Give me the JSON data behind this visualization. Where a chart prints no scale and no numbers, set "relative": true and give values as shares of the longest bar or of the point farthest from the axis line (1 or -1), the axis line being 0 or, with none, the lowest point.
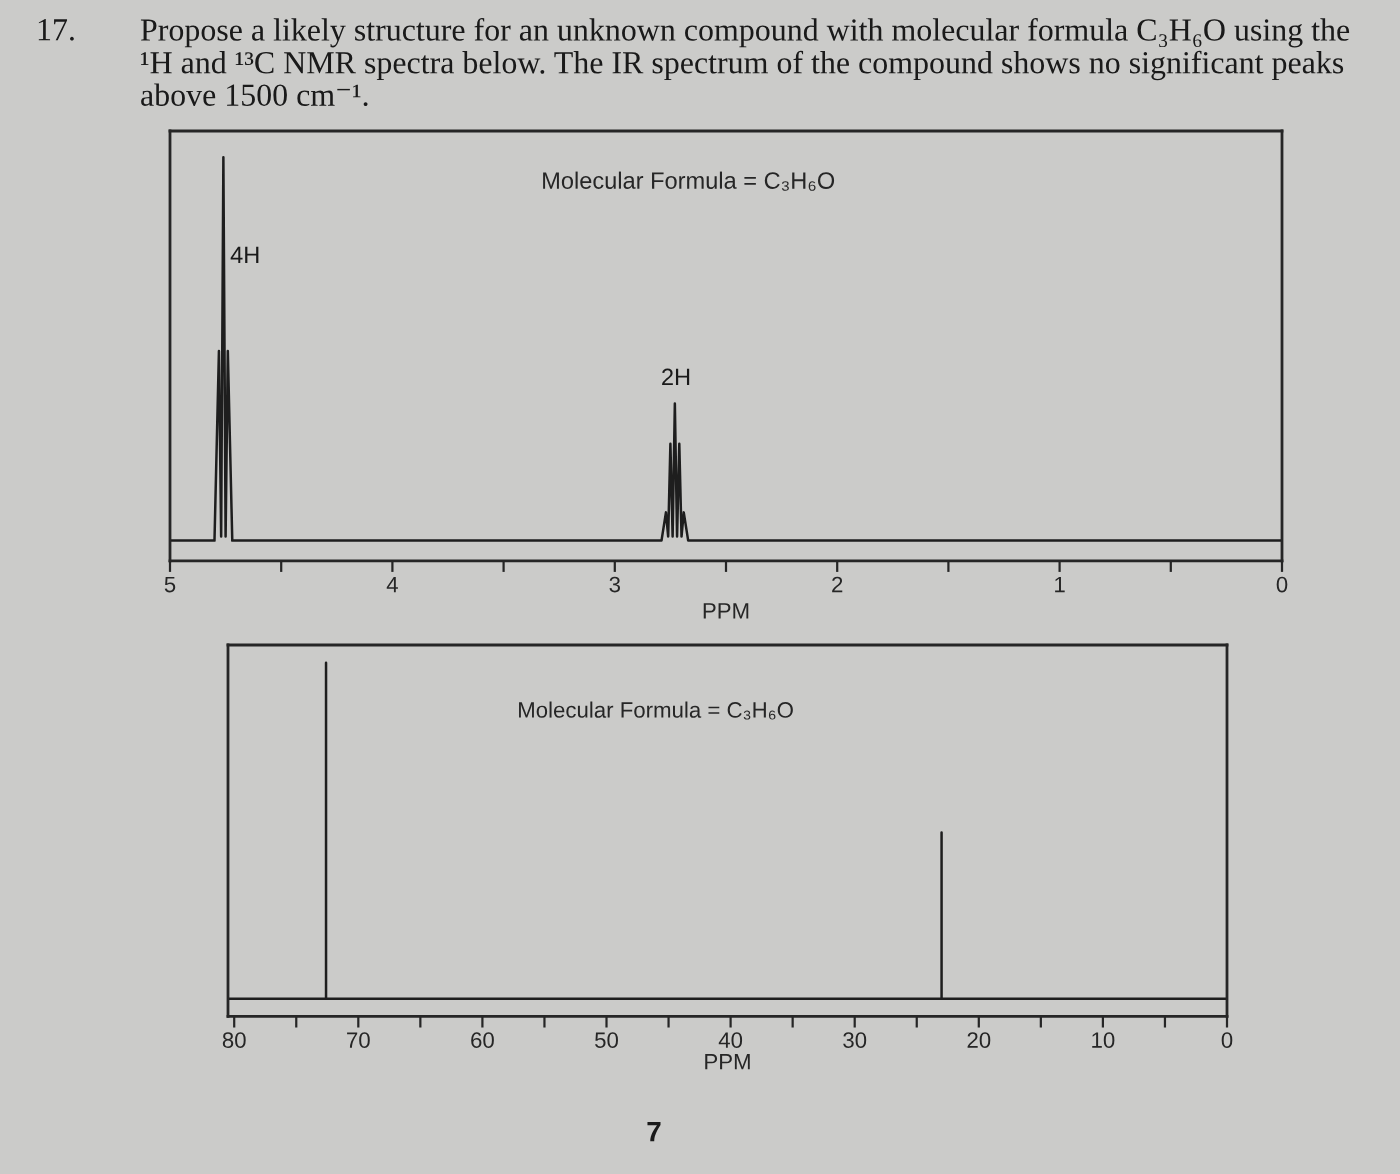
{
  "chart_data": [
    {
      "type": "line",
      "title": "Molecular Formula = C₃H₆O",
      "xlabel": "PPM",
      "relative": true,
      "tick_labels": "x",
      "xlim": [
        5,
        0
      ],
      "xticks": [
        5,
        {
          "value": 4.5,
          "label": null
        },
        4,
        {
          "value": 3.5,
          "label": null
        },
        3,
        {
          "value": 2.5,
          "label": null
        },
        2,
        {
          "value": 1.5,
          "label": null
        },
        1,
        {
          "value": 0.5,
          "label": null
        },
        0
      ],
      "x": [
        5.0,
        4.8,
        4.78,
        4.77,
        4.76,
        4.75,
        4.74,
        4.72,
        2.79,
        2.77,
        2.76,
        2.75,
        2.74,
        2.73,
        2.72,
        2.71,
        2.7,
        2.69,
        2.67,
        0
      ],
      "series": [
        {
          "color": "#1e1e1e",
          "values": [
            0.05,
            0.05,
            0.52,
            0.06,
            1.0,
            0.06,
            0.52,
            0.05,
            0.05,
            0.12,
            0.06,
            0.29,
            0.06,
            0.39,
            0.06,
            0.29,
            0.06,
            0.12,
            0.05,
            0.05
          ]
        }
      ],
      "annotations": [
        "17.",
        "Propose a likely structure for an unknown compound with molecular formula C₃H₆O using the\n¹H and ¹³C NMR spectra below. The IR spectrum of the compound shows no significant peaks\nabove 1500 cm⁻¹.",
        "4H",
        "2H"
      ]
    },
    {
      "type": "line",
      "title": "Molecular Formula = C₃H₆O",
      "xlabel": "PPM",
      "relative": true,
      "tick_labels": "x",
      "xlim": [
        80.5,
        0
      ],
      "xticks": [
        80,
        {
          "value": 75,
          "label": null
        },
        70,
        {
          "value": 65,
          "label": null
        },
        60,
        {
          "value": 55,
          "label": null
        },
        50,
        {
          "value": 45,
          "label": null
        },
        40,
        {
          "value": 35,
          "label": null
        },
        30,
        {
          "value": 25,
          "label": null
        },
        20,
        {
          "value": 15,
          "label": null
        },
        10,
        {
          "value": 5,
          "label": null
        },
        0
      ],
      "x": [
        80.5,
        72.6,
        72.6,
        72.6,
        23.0,
        23.0,
        23.0,
        0
      ],
      "series": [
        {
          "color": "#1e1e1e",
          "values": [
            0.05,
            0.05,
            1.0,
            0.05,
            0.05,
            0.52,
            0.05,
            0.05
          ]
        }
      ],
      "annotations": [
        "7"
      ]
    }
  ]
}
